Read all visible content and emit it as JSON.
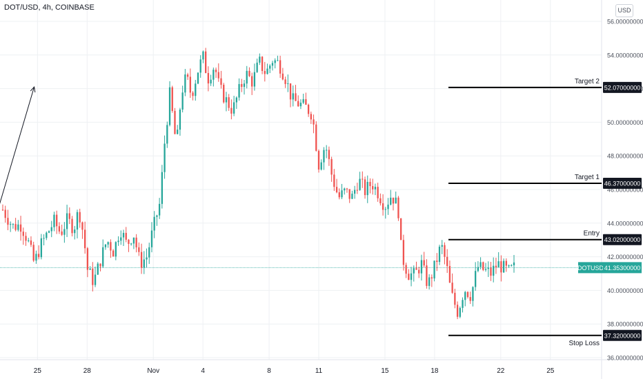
{
  "header": {
    "title": "DOT/USD, 4h, COINBASE",
    "currency_button": "USD"
  },
  "colors": {
    "up": "#26a69a",
    "down": "#ef5350",
    "grid": "#eef0f3",
    "price_line": "#26a69a",
    "level": "#000000"
  },
  "price_tag": {
    "symbol": "DOTUSD",
    "value": "41.35300000",
    "price": 41.353
  },
  "levels": [
    {
      "id": "target2",
      "label": "Target 2",
      "price": 52.07,
      "value_text": "52.07000000",
      "label_side": "above"
    },
    {
      "id": "target1",
      "label": "Target 1",
      "price": 46.37,
      "value_text": "46.37000000",
      "label_side": "above"
    },
    {
      "id": "entry",
      "label": "Entry",
      "price": 43.02,
      "value_text": "43.02000000",
      "label_side": "above"
    },
    {
      "id": "stoploss",
      "label": "Stop Loss",
      "price": 37.32,
      "value_text": "37.32000000",
      "label_side": "below"
    }
  ],
  "projection_arrow": {
    "from_day": 22.1,
    "from_price": 43.1,
    "to_day": 24.8,
    "to_price": 52.1
  },
  "chart_data": {
    "type": "candlestick",
    "title": "DOT/USD, 4h, COINBASE",
    "y_unit": "USD",
    "ylim": [
      35.8,
      56.6
    ],
    "y_ticks": [
      36,
      38,
      40,
      42,
      44,
      46,
      48,
      50,
      52,
      54,
      56
    ],
    "y_tick_labels": [
      "36.00000000",
      "38.00000000",
      "40.00000000",
      "42.00000000",
      "44.00000000",
      "46.00000000",
      "48.00000000",
      "50.00000000",
      "52.00000000",
      "54.00000000",
      "56.00000000"
    ],
    "x_ticks": [
      {
        "label": "25",
        "day": 25
      },
      {
        "label": "28",
        "day": 28
      },
      {
        "label": "Nov",
        "day": 1
      },
      {
        "label": "4",
        "day": 4
      },
      {
        "label": "8",
        "day": 8
      },
      {
        "label": "11",
        "day": 11
      },
      {
        "label": "15",
        "day": 15
      },
      {
        "label": "18",
        "day": 18
      },
      {
        "label": "22",
        "day": 22
      },
      {
        "label": "25",
        "day": 25.0001
      }
    ],
    "x_tick_positions": [
      25,
      28,
      32,
      35,
      39,
      42,
      46,
      49,
      53,
      56
    ],
    "x_range": [
      22.9,
      57.0
    ],
    "candle_anchors": [
      [
        22.9,
        44.8
      ],
      [
        23.5,
        43.8
      ],
      [
        24.0,
        43.9
      ],
      [
        24.4,
        43.0
      ],
      [
        24.8,
        41.6
      ],
      [
        25.2,
        42.7
      ],
      [
        25.6,
        43.4
      ],
      [
        26.0,
        44.1
      ],
      [
        26.4,
        43.4
      ],
      [
        26.8,
        44.2
      ],
      [
        27.2,
        43.7
      ],
      [
        27.5,
        44.8
      ],
      [
        27.8,
        43.2
      ],
      [
        28.0,
        41.3
      ],
      [
        28.4,
        40.5
      ],
      [
        28.8,
        41.8
      ],
      [
        29.2,
        43.0
      ],
      [
        29.6,
        42.3
      ],
      [
        30.0,
        43.7
      ],
      [
        30.4,
        42.7
      ],
      [
        30.8,
        43.4
      ],
      [
        31.2,
        41.6
      ],
      [
        31.6,
        42.0
      ],
      [
        32.0,
        43.7
      ],
      [
        32.4,
        45.2
      ],
      [
        32.7,
        49.0
      ],
      [
        33.0,
        51.7
      ],
      [
        33.4,
        48.5
      ],
      [
        33.7,
        51.8
      ],
      [
        34.0,
        52.7
      ],
      [
        34.3,
        51.6
      ],
      [
        34.7,
        53.1
      ],
      [
        35.0,
        53.9
      ],
      [
        35.3,
        52.6
      ],
      [
        35.7,
        53.4
      ],
      [
        36.0,
        52.0
      ],
      [
        36.4,
        51.3
      ],
      [
        36.8,
        50.7
      ],
      [
        37.2,
        51.9
      ],
      [
        37.6,
        52.9
      ],
      [
        38.0,
        52.4
      ],
      [
        38.4,
        53.6
      ],
      [
        38.8,
        52.9
      ],
      [
        39.2,
        53.7
      ],
      [
        39.6,
        53.5
      ],
      [
        40.0,
        52.6
      ],
      [
        40.4,
        51.3
      ],
      [
        40.8,
        51.1
      ],
      [
        41.2,
        50.9
      ],
      [
        41.6,
        50.5
      ],
      [
        42.0,
        47.5
      ],
      [
        42.4,
        48.7
      ],
      [
        42.8,
        46.8
      ],
      [
        43.2,
        45.5
      ],
      [
        43.6,
        45.9
      ],
      [
        44.0,
        45.5
      ],
      [
        44.4,
        46.6
      ],
      [
        44.8,
        45.9
      ],
      [
        45.2,
        46.4
      ],
      [
        45.6,
        45.8
      ],
      [
        46.0,
        45.0
      ],
      [
        46.4,
        45.7
      ],
      [
        46.8,
        44.9
      ],
      [
        47.0,
        42.1
      ],
      [
        47.4,
        41.0
      ],
      [
        47.8,
        40.9
      ],
      [
        48.2,
        41.6
      ],
      [
        48.6,
        40.3
      ],
      [
        49.0,
        41.4
      ],
      [
        49.4,
        42.7
      ],
      [
        49.7,
        41.6
      ],
      [
        50.0,
        39.8
      ],
      [
        50.4,
        38.7
      ],
      [
        50.8,
        40.1
      ],
      [
        51.2,
        39.7
      ],
      [
        51.6,
        41.4
      ],
      [
        52.0,
        41.2
      ],
      [
        52.4,
        41.0
      ],
      [
        52.8,
        41.6
      ],
      [
        53.2,
        41.3
      ],
      [
        53.5,
        41.1
      ],
      [
        53.8,
        41.35
      ]
    ],
    "candle_count": 200
  }
}
